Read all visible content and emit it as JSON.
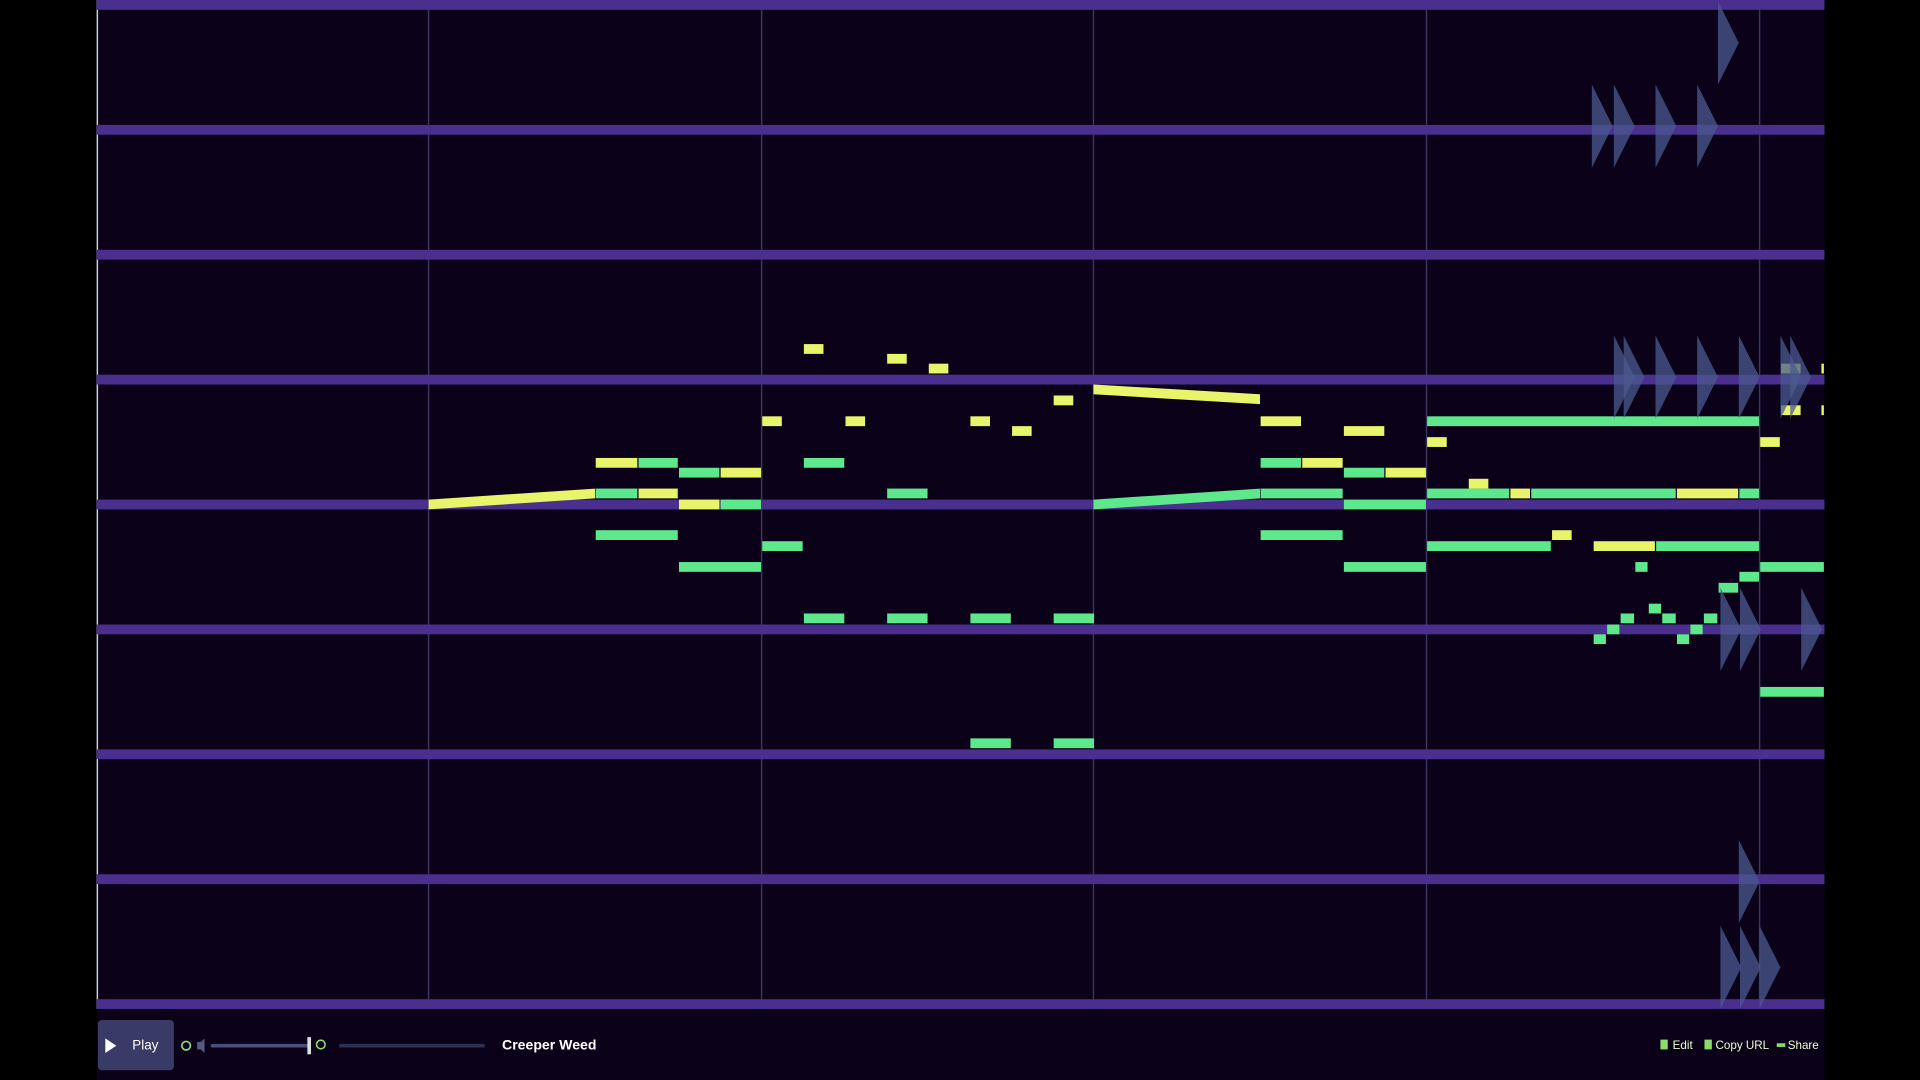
{
  "player": {
    "play": "Play",
    "song_title": "Creeper Weed",
    "actions": [
      "Edit",
      "Copy URL",
      "Share"
    ]
  }
}
